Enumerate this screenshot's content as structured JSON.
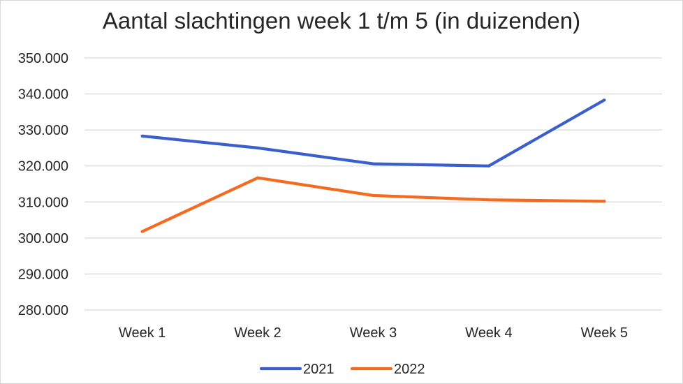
{
  "chart_data": {
    "type": "line",
    "title": "Aantal slachtingen week 1 t/m 5 (in duizenden)",
    "xlabel": "",
    "ylabel": "",
    "categories": [
      "Week 1",
      "Week 2",
      "Week 3",
      "Week 4",
      "Week 5"
    ],
    "y_ticks": [
      "280.000",
      "290.000",
      "300.000",
      "310.000",
      "320.000",
      "330.000",
      "340.000",
      "350.000"
    ],
    "ylim": [
      280000,
      350000
    ],
    "grid": true,
    "legend_position": "bottom",
    "series": [
      {
        "name": "2021",
        "color": "#3a5fcd",
        "values": [
          328300,
          325000,
          320600,
          320000,
          338300
        ]
      },
      {
        "name": "2022",
        "color": "#f46a1e",
        "values": [
          301800,
          316700,
          311800,
          310600,
          310200
        ]
      }
    ]
  }
}
